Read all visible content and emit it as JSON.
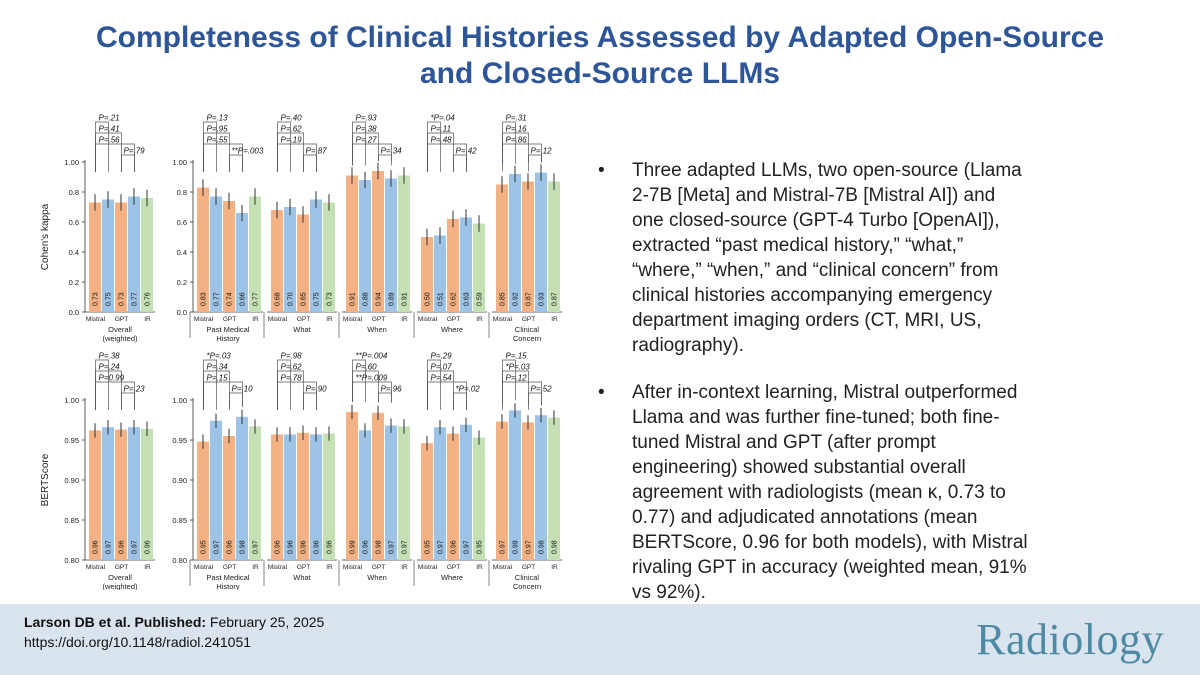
{
  "title": {
    "line1": "Completeness of Clinical Histories Assessed by Adapted Open-Source",
    "line2": "and Closed-Source LLMs"
  },
  "bullets": [
    "Three adapted LLMs, two open-source (Llama 2-7B [Meta] and Mistral-7B [Mistral AI]) and one closed-source (GPT-4 Turbo [OpenAI]), extracted “past medical history,” “what,” “where,” “when,” and “clinical concern” from clinical histories accompanying emergency department imaging orders (CT, MRI, US, radiography).",
    "After in-context learning, Mistral outperformed Llama and was further fine-tuned; both fine-tuned Mistral and GPT (after prompt engineering) showed substantial overall agreement with radiologists (mean κ, 0.73 to 0.77) and adjudicated annotations (mean BERTScore, 0.96 for both models), with Mistral rivaling GPT in accuracy (weighted mean, 91% vs 92%)."
  ],
  "bullet_symbol": "•",
  "citation": {
    "authors_label": "Larson DB et al. Published:",
    "date": "February 25, 2025",
    "doi": "https://doi.org/10.1148/radiol.241051"
  },
  "logo_text": "Radiology",
  "colors": {
    "title": "#2e5597",
    "orange": "#f4b183",
    "blue": "#9dc3e6",
    "green": "#c5e0b4",
    "footer": "#d9e4ef",
    "logo": "#4e8aa3"
  },
  "chart_data": [
    {
      "type": "bar",
      "ylabel": "Cohen's kappa",
      "ylim": [
        0,
        1
      ],
      "yticks": [
        "0.0",
        "0.2",
        "0.4",
        "0.6",
        "0.8",
        "1.00"
      ],
      "bar_labels": [
        "Mistral",
        "",
        "GPT",
        "",
        "IR"
      ],
      "groups": [
        {
          "name": "Overall\n(weighted)",
          "values": [
            0.73,
            0.75,
            0.73,
            0.77,
            0.76
          ],
          "labels": [
            "0.73",
            "0.75",
            "0.73",
            "0.77",
            "0.76"
          ],
          "pvalues": [
            {
              "from": 0,
              "to": 1,
              "text": "P=.21",
              "stars": ""
            },
            {
              "from": 0,
              "to": 2,
              "text": "P=.41",
              "stars": ""
            },
            {
              "from": 0,
              "to": 3,
              "text": "P=.56",
              "stars": ""
            },
            {
              "from": 2,
              "to": 3,
              "text": "P=.79",
              "stars": ""
            }
          ]
        },
        {
          "name": "Past Medical\nHistory",
          "values": [
            0.83,
            0.77,
            0.74,
            0.66,
            0.77
          ],
          "labels": [
            "0.83",
            "0.77",
            "0.74",
            "0.66",
            "0.77"
          ],
          "pvalues": [
            {
              "from": 0,
              "to": 1,
              "text": "P=.13",
              "stars": ""
            },
            {
              "from": 0,
              "to": 2,
              "text": "P=.95",
              "stars": ""
            },
            {
              "from": 0,
              "to": 3,
              "text": "P=.55",
              "stars": ""
            },
            {
              "from": 2,
              "to": 3,
              "text": "P=.003",
              "stars": "**"
            }
          ]
        },
        {
          "name": "What",
          "values": [
            0.68,
            0.7,
            0.65,
            0.75,
            0.73
          ],
          "labels": [
            "0.68",
            "0.70",
            "0.65",
            "0.75",
            "0.73"
          ],
          "pvalues": [
            {
              "from": 0,
              "to": 1,
              "text": "P=.40",
              "stars": ""
            },
            {
              "from": 0,
              "to": 2,
              "text": "P=.62",
              "stars": ""
            },
            {
              "from": 0,
              "to": 3,
              "text": "P=.19",
              "stars": ""
            },
            {
              "from": 2,
              "to": 3,
              "text": "P=.87",
              "stars": ""
            }
          ]
        },
        {
          "name": "When",
          "values": [
            0.91,
            0.88,
            0.94,
            0.89,
            0.91
          ],
          "labels": [
            "0.91",
            "0.88",
            "0.94",
            "0.89",
            "0.91"
          ],
          "pvalues": [
            {
              "from": 0,
              "to": 1,
              "text": "P=.93",
              "stars": ""
            },
            {
              "from": 0,
              "to": 2,
              "text": "P=.38",
              "stars": ""
            },
            {
              "from": 0,
              "to": 3,
              "text": "P=.27",
              "stars": ""
            },
            {
              "from": 2,
              "to": 3,
              "text": "P=.34",
              "stars": ""
            }
          ]
        },
        {
          "name": "Where",
          "values": [
            0.5,
            0.51,
            0.62,
            0.63,
            0.59
          ],
          "labels": [
            "0.50",
            "0.51",
            "0.62",
            "0.63",
            "0.59"
          ],
          "pvalues": [
            {
              "from": 0,
              "to": 1,
              "text": "P=.04",
              "stars": "*"
            },
            {
              "from": 0,
              "to": 2,
              "text": "P=.11",
              "stars": ""
            },
            {
              "from": 0,
              "to": 3,
              "text": "P=.48",
              "stars": ""
            },
            {
              "from": 2,
              "to": 3,
              "text": "P=.42",
              "stars": ""
            }
          ]
        },
        {
          "name": "Clinical\nConcern",
          "values": [
            0.85,
            0.92,
            0.87,
            0.93,
            0.87
          ],
          "labels": [
            "0.85",
            "0.92",
            "0.87",
            "0.93",
            "0.87"
          ],
          "pvalues": [
            {
              "from": 0,
              "to": 1,
              "text": "P=.31",
              "stars": ""
            },
            {
              "from": 0,
              "to": 2,
              "text": "P=.16",
              "stars": ""
            },
            {
              "from": 0,
              "to": 3,
              "text": "P=.86",
              "stars": ""
            },
            {
              "from": 2,
              "to": 3,
              "text": "P=.12",
              "stars": ""
            }
          ]
        }
      ]
    },
    {
      "type": "bar",
      "ylabel": "BERTScore",
      "ylim": [
        0.8,
        1.0
      ],
      "yticks": [
        "0.80",
        "0.85",
        "0.90",
        "0.95",
        "1.00"
      ],
      "bar_labels": [
        "Mistral",
        "",
        "GPT",
        "",
        "IR"
      ],
      "groups": [
        {
          "name": "Overall\n(weighted)",
          "values": [
            0.962,
            0.966,
            0.963,
            0.966,
            0.964
          ],
          "labels": [
            "0.96",
            "0.97",
            "0.96",
            "0.97",
            "0.96"
          ],
          "pvalues": [
            {
              "from": 0,
              "to": 1,
              "text": "P=.38",
              "stars": ""
            },
            {
              "from": 0,
              "to": 2,
              "text": "P=.24",
              "stars": ""
            },
            {
              "from": 0,
              "to": 3,
              "text": "P=0.99",
              "stars": ""
            },
            {
              "from": 2,
              "to": 3,
              "text": "P=.23",
              "stars": ""
            }
          ]
        },
        {
          "name": "Past Medical\nHistory",
          "values": [
            0.948,
            0.974,
            0.955,
            0.979,
            0.967
          ],
          "labels": [
            "0.95",
            "0.97",
            "0.96",
            "0.98",
            "0.97"
          ],
          "pvalues": [
            {
              "from": 0,
              "to": 1,
              "text": "P=.03",
              "stars": "*"
            },
            {
              "from": 0,
              "to": 2,
              "text": "P=.34",
              "stars": ""
            },
            {
              "from": 0,
              "to": 3,
              "text": "P=.15",
              "stars": ""
            },
            {
              "from": 2,
              "to": 3,
              "text": "P=.10",
              "stars": ""
            }
          ]
        },
        {
          "name": "What",
          "values": [
            0.957,
            0.957,
            0.959,
            0.957,
            0.958
          ],
          "labels": [
            "0.96",
            "0.96",
            "0.96",
            "0.96",
            "0.96"
          ],
          "pvalues": [
            {
              "from": 0,
              "to": 1,
              "text": "P=.98",
              "stars": ""
            },
            {
              "from": 0,
              "to": 2,
              "text": "P=.62",
              "stars": ""
            },
            {
              "from": 0,
              "to": 3,
              "text": "P=.78",
              "stars": ""
            },
            {
              "from": 2,
              "to": 3,
              "text": "P=.90",
              "stars": ""
            }
          ]
        },
        {
          "name": "When",
          "values": [
            0.985,
            0.962,
            0.984,
            0.968,
            0.967
          ],
          "labels": [
            "0.99",
            "0.96",
            "0.98",
            "0.97",
            "0.97"
          ],
          "pvalues": [
            {
              "from": 0,
              "to": 1,
              "text": "P=.004",
              "stars": "**"
            },
            {
              "from": 0,
              "to": 2,
              "text": "P=.60",
              "stars": ""
            },
            {
              "from": 0,
              "to": 3,
              "text": "P=.009",
              "stars": "**"
            },
            {
              "from": 2,
              "to": 3,
              "text": "P=.96",
              "stars": ""
            }
          ]
        },
        {
          "name": "Where",
          "values": [
            0.946,
            0.966,
            0.958,
            0.969,
            0.953
          ],
          "labels": [
            "0.95",
            "0.97",
            "0.96",
            "0.97",
            "0.95"
          ],
          "pvalues": [
            {
              "from": 0,
              "to": 1,
              "text": "P=.29",
              "stars": ""
            },
            {
              "from": 0,
              "to": 2,
              "text": "P=.07",
              "stars": ""
            },
            {
              "from": 0,
              "to": 3,
              "text": "P=.54",
              "stars": ""
            },
            {
              "from": 2,
              "to": 3,
              "text": "P=.02",
              "stars": "*"
            }
          ]
        },
        {
          "name": "Clinical\nConcern",
          "values": [
            0.973,
            0.987,
            0.972,
            0.981,
            0.978
          ],
          "labels": [
            "0.97",
            "0.99",
            "0.97",
            "0.98",
            "0.98"
          ],
          "pvalues": [
            {
              "from": 0,
              "to": 1,
              "text": "P=.15",
              "stars": ""
            },
            {
              "from": 0,
              "to": 2,
              "text": "P=.03",
              "stars": "*"
            },
            {
              "from": 0,
              "to": 3,
              "text": "P=.12",
              "stars": ""
            },
            {
              "from": 2,
              "to": 3,
              "text": "P=.52",
              "stars": ""
            }
          ]
        }
      ]
    }
  ]
}
